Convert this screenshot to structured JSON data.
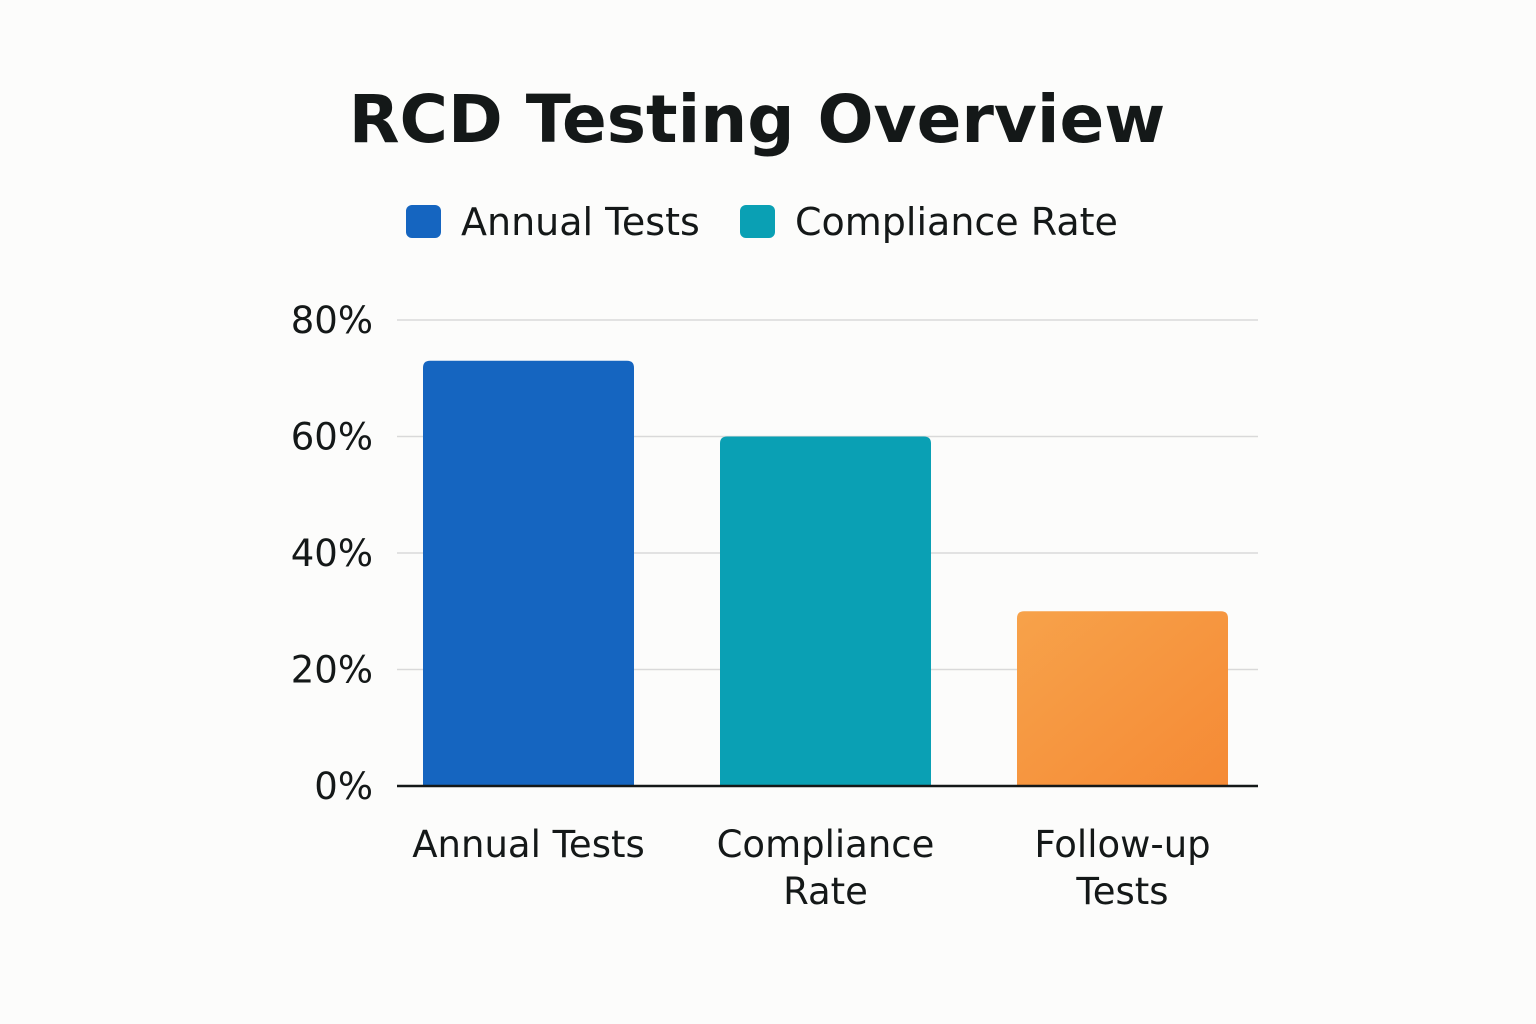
{
  "chart_data": {
    "type": "bar",
    "title": "RCD Testing Overview",
    "xlabel": "",
    "ylabel": "",
    "ylim": [
      0,
      80
    ],
    "yticks": [
      0,
      20,
      40,
      60,
      80
    ],
    "ytick_suffix": "%",
    "grid": true,
    "legend": {
      "position": "top-center",
      "entries": [
        {
          "label": "Annual Tests",
          "color": "#1565c0"
        },
        {
          "label": "Compliance Rate",
          "color": "#0aa0b4"
        }
      ]
    },
    "categories": [
      {
        "lines": [
          "Annual Tests"
        ]
      },
      {
        "lines": [
          "Compliance",
          "Rate"
        ]
      },
      {
        "lines": [
          "Follow-up",
          "Tests"
        ]
      }
    ],
    "values": [
      73,
      60,
      30
    ],
    "colors": [
      "#1565c0",
      "#0aa0b4",
      "#f7953d"
    ]
  }
}
